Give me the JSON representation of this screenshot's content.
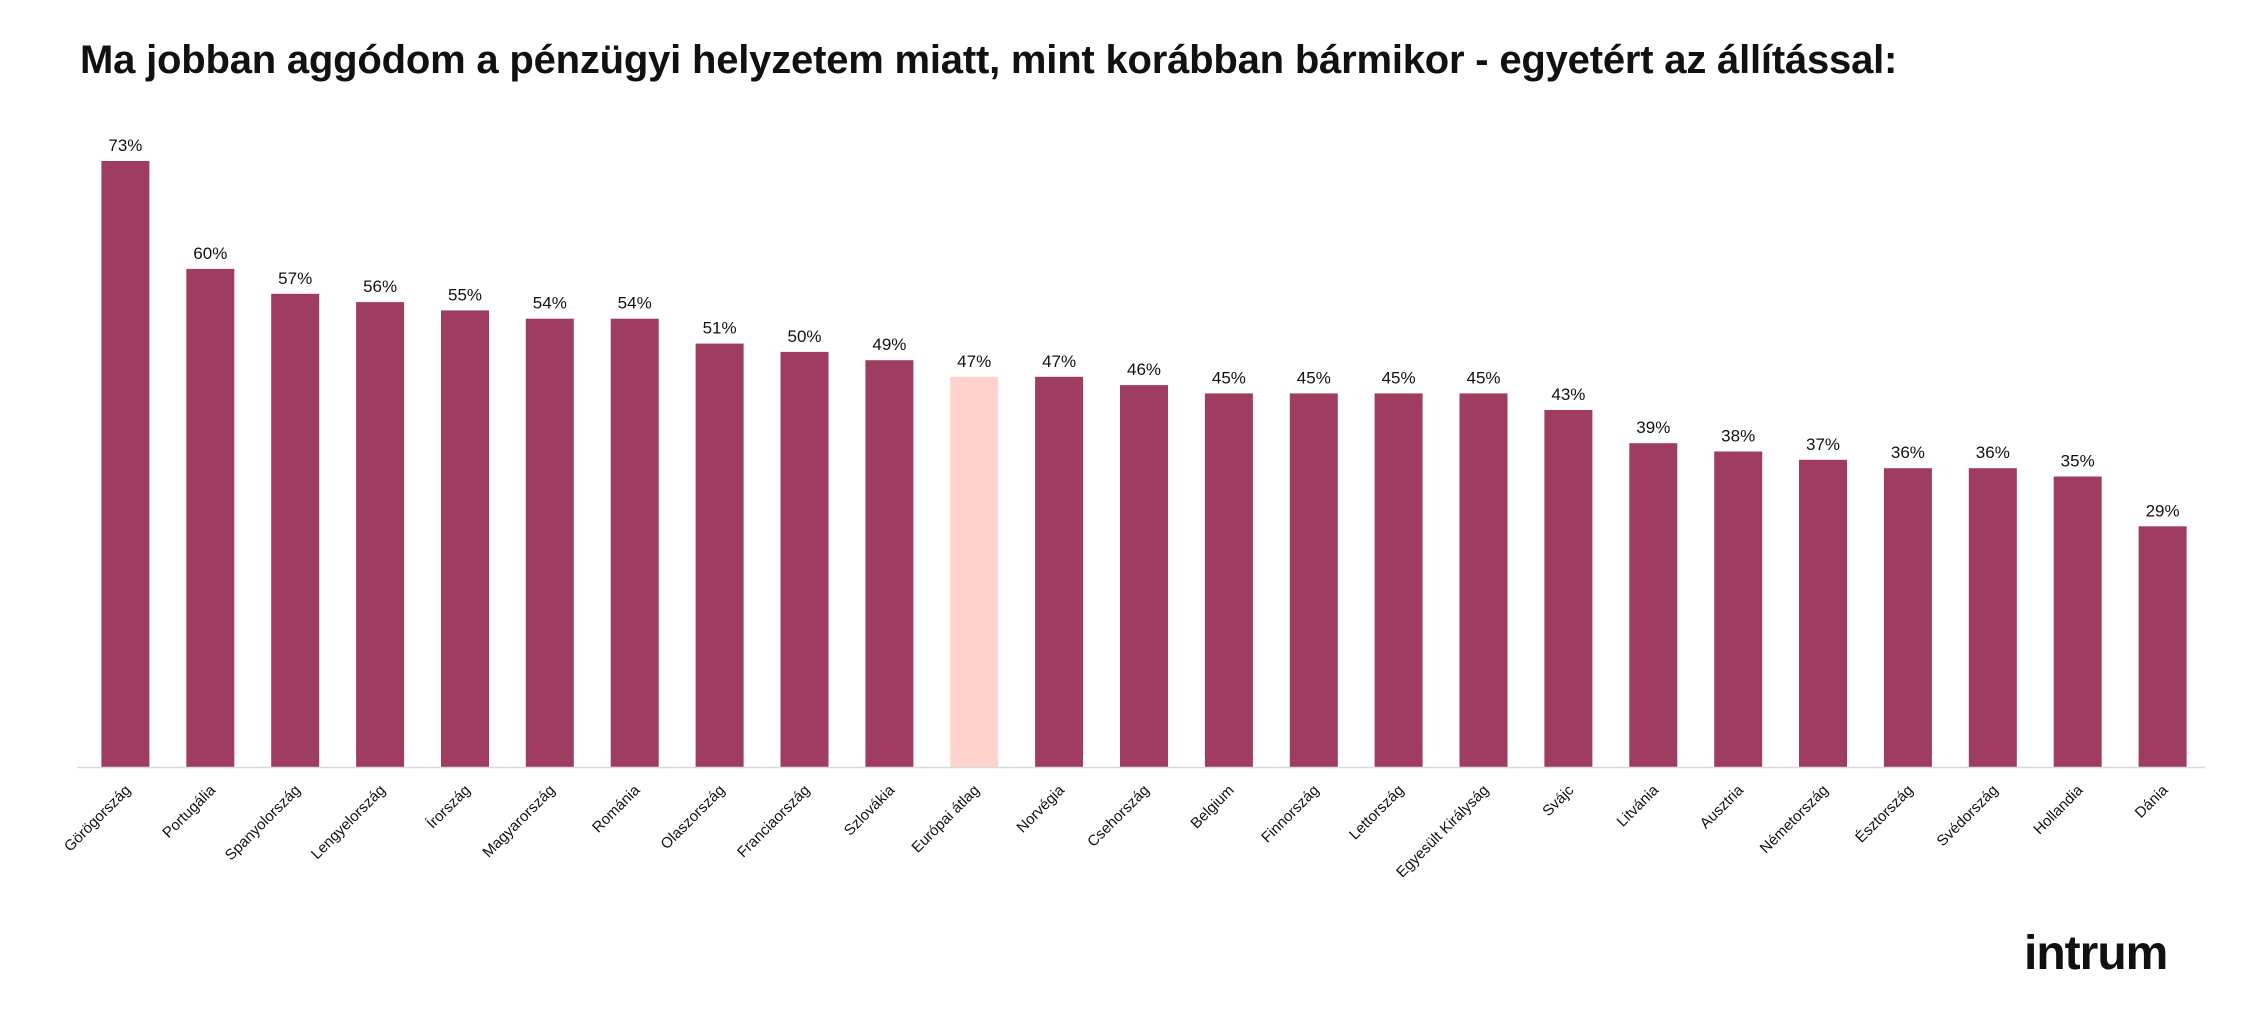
{
  "chart_data": {
    "type": "bar",
    "title": "Ma jobban aggódom a pénzügyi helyzetem miatt, mint korábban bármikor - egyetért az állítással:",
    "xlabel": "",
    "ylabel": "",
    "ylim": [
      0,
      73
    ],
    "grid": false,
    "legend": "none",
    "bar_color": "#9e3c61",
    "highlight_color": "#ffd3cc",
    "highlight_category": "Európai átlag",
    "categories": [
      "Görögország",
      "Portugália",
      "Spanyolország",
      "Lengyelország",
      "Írország",
      "Magyarország",
      "Románia",
      "Olaszország",
      "Franciaország",
      "Szlovákia",
      "Európai átlag",
      "Norvégia",
      "Csehország",
      "Belgium",
      "Finnország",
      "Lettország",
      "Egyesült Királyság",
      "Svájc",
      "Litvánia",
      "Ausztria",
      "Németország",
      "Észtország",
      "Svédország",
      "Hollandia",
      "Dánia"
    ],
    "values": [
      73,
      60,
      57,
      56,
      55,
      54,
      54,
      51,
      50,
      49,
      47,
      47,
      46,
      45,
      45,
      45,
      45,
      43,
      39,
      38,
      37,
      36,
      36,
      35,
      29
    ],
    "value_labels": [
      "73%",
      "60%",
      "57%",
      "56%",
      "55%",
      "54%",
      "54%",
      "51%",
      "50%",
      "49%",
      "47%",
      "47%",
      "46%",
      "45%",
      "45%",
      "45%",
      "45%",
      "43%",
      "39%",
      "38%",
      "37%",
      "36%",
      "36%",
      "35%",
      "29%"
    ]
  },
  "brand": {
    "logo_text": "intrum"
  }
}
